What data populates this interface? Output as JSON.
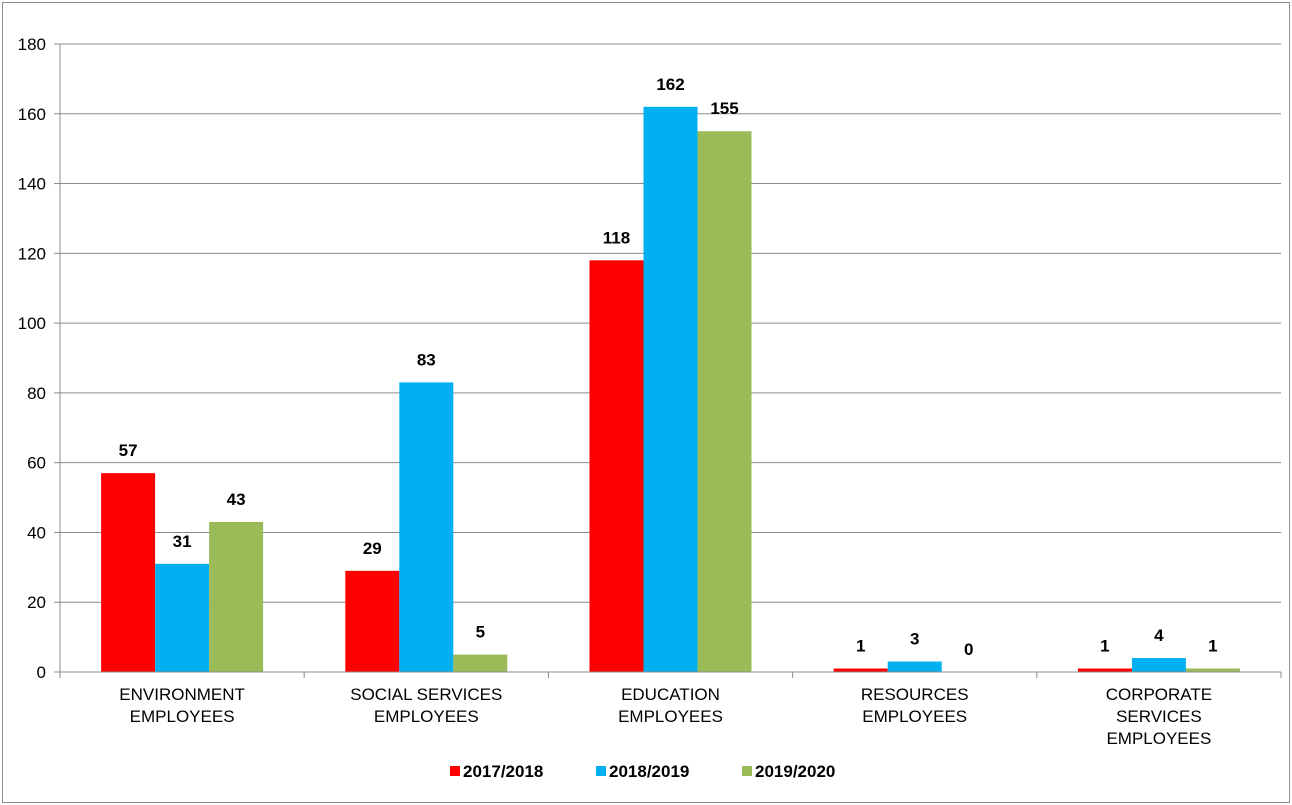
{
  "chart_data": {
    "type": "bar",
    "categories": [
      [
        "ENVIRONMENT",
        "EMPLOYEES"
      ],
      [
        "SOCIAL SERVICES",
        "EMPLOYEES"
      ],
      [
        "EDUCATION",
        "EMPLOYEES"
      ],
      [
        "RESOURCES",
        "EMPLOYEES"
      ],
      [
        "CORPORATE",
        "SERVICES",
        "EMPLOYEES"
      ]
    ],
    "series": [
      {
        "name": "2017/2018",
        "color": "#ff0000",
        "values": [
          57,
          29,
          118,
          1,
          1
        ]
      },
      {
        "name": "2018/2019",
        "color": "#00b0f0",
        "values": [
          31,
          83,
          162,
          3,
          4
        ]
      },
      {
        "name": "2019/2020",
        "color": "#9bbb59",
        "values": [
          43,
          5,
          155,
          0,
          1
        ]
      }
    ],
    "title": "",
    "xlabel": "",
    "ylabel": "",
    "ylim": [
      0,
      180
    ],
    "yticks": [
      0,
      20,
      40,
      60,
      80,
      100,
      120,
      140,
      160,
      180
    ],
    "grid": true,
    "legend_position": "bottom",
    "data_labels": true
  }
}
